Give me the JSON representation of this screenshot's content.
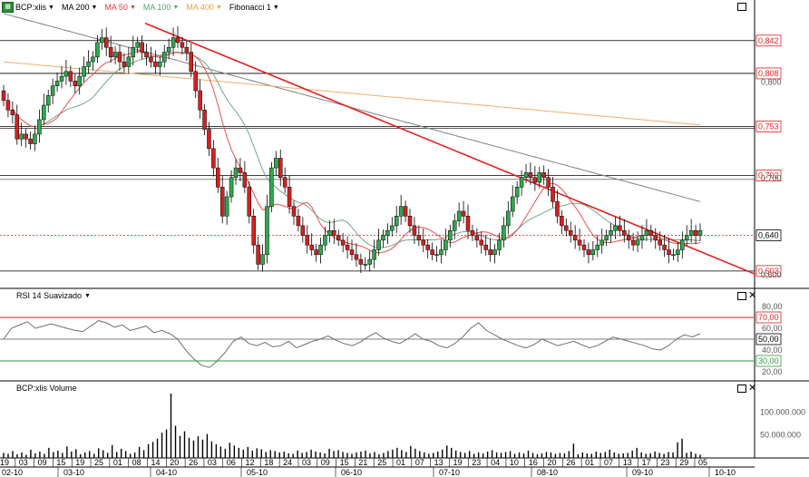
{
  "toolbar": {
    "ticker": "BCP:xlis",
    "ticker_icon": "ticker-badge",
    "indicators": [
      {
        "label": "MA 200",
        "color": "#000000"
      },
      {
        "label": "MA 50",
        "color": "#e83a3a"
      },
      {
        "label": "MA 100",
        "color": "#58a070"
      },
      {
        "label": "MA 400",
        "color": "#e8a040"
      },
      {
        "label": "Fibonacci 1",
        "color": "#000000"
      }
    ]
  },
  "rsi_panel": {
    "label": "RSI 14 Suavizado",
    "overbought": 70,
    "oversold": 30,
    "ticks": [
      "80,00",
      "70,00",
      "60,00",
      "50,00",
      "40,00",
      "30,00",
      "20,00"
    ]
  },
  "volume_panel": {
    "label": "BCP:xlis Volume",
    "ticks": [
      "100.000.000",
      "50.000.000"
    ]
  },
  "price_axis": {
    "fib_levels": [
      "0,842",
      "0,808",
      "0,753",
      "0,702",
      "0,603"
    ],
    "tick_labels": [
      "0,800",
      "0,700",
      "0,600"
    ],
    "current_price": "0,640"
  },
  "x_axis": {
    "days": [
      "19",
      "03",
      "09",
      "15",
      "19",
      "25",
      "01",
      "08",
      "14",
      "20",
      "26",
      "03",
      "06",
      "12",
      "18",
      "24",
      "03",
      "09",
      "15",
      "21",
      "25",
      "01",
      "07",
      "13",
      "19",
      "23",
      "04",
      "10",
      "16",
      "20",
      "26",
      "01",
      "07",
      "13",
      "17",
      "23",
      "29",
      "05"
    ],
    "months": [
      "02-10",
      "03-10",
      "04-10",
      "05-10",
      "06-10",
      "07-10",
      "08-10",
      "09-10",
      "10-10"
    ]
  },
  "colors": {
    "up": "#2fa84f",
    "down": "#d62020",
    "ma200": "#808080",
    "ma50": "#e85050",
    "ma100": "#70a888",
    "ma400": "#f0b070",
    "trendline": "#e02020",
    "fib_line": "#000000",
    "current_price_line": "#e02020",
    "rsi_line": "#707070",
    "rsi_overbought": "#e02020",
    "rsi_oversold": "#2e9a40",
    "volume_bar": "#000000"
  },
  "chart_data": [
    {
      "type": "candlestick",
      "title": "BCP:xlis",
      "ylabel": "",
      "ylim": [
        0.585,
        0.87
      ],
      "current_price": 0.64,
      "fibonacci_levels": [
        0.842,
        0.808,
        0.753,
        0.702,
        0.603
      ],
      "moving_averages": [
        "MA 200",
        "MA 50",
        "MA 100",
        "MA 400"
      ],
      "trendline": [
        {
          "x": "2010-03-18",
          "y": 0.86
        },
        {
          "x": "2010-10-06",
          "y": 0.6
        }
      ],
      "close": [
        0.78,
        0.77,
        0.765,
        0.74,
        0.745,
        0.74,
        0.735,
        0.745,
        0.76,
        0.775,
        0.785,
        0.795,
        0.8,
        0.805,
        0.81,
        0.8,
        0.795,
        0.805,
        0.815,
        0.82,
        0.825,
        0.84,
        0.845,
        0.835,
        0.825,
        0.83,
        0.82,
        0.815,
        0.825,
        0.835,
        0.84,
        0.83,
        0.825,
        0.82,
        0.815,
        0.82,
        0.83,
        0.835,
        0.845,
        0.84,
        0.835,
        0.83,
        0.81,
        0.79,
        0.77,
        0.75,
        0.73,
        0.71,
        0.69,
        0.66,
        0.68,
        0.7,
        0.71,
        0.705,
        0.69,
        0.66,
        0.63,
        0.61,
        0.62,
        0.67,
        0.71,
        0.72,
        0.7,
        0.69,
        0.67,
        0.66,
        0.65,
        0.64,
        0.63,
        0.625,
        0.62,
        0.63,
        0.64,
        0.645,
        0.64,
        0.635,
        0.63,
        0.625,
        0.62,
        0.615,
        0.61,
        0.61,
        0.615,
        0.625,
        0.635,
        0.64,
        0.645,
        0.65,
        0.66,
        0.67,
        0.66,
        0.65,
        0.64,
        0.635,
        0.63,
        0.625,
        0.62,
        0.62,
        0.625,
        0.635,
        0.645,
        0.655,
        0.665,
        0.66,
        0.645,
        0.64,
        0.635,
        0.63,
        0.625,
        0.62,
        0.625,
        0.635,
        0.65,
        0.665,
        0.68,
        0.69,
        0.7,
        0.705,
        0.7,
        0.695,
        0.705,
        0.7,
        0.69,
        0.675,
        0.66,
        0.65,
        0.645,
        0.64,
        0.635,
        0.63,
        0.625,
        0.62,
        0.625,
        0.63,
        0.635,
        0.64,
        0.645,
        0.65,
        0.645,
        0.64,
        0.635,
        0.63,
        0.635,
        0.64,
        0.645,
        0.64,
        0.635,
        0.63,
        0.625,
        0.62,
        0.62,
        0.625,
        0.635,
        0.64,
        0.645,
        0.64,
        0.645
      ]
    },
    {
      "type": "line",
      "title": "RSI 14 Suavizado",
      "ylim": [
        15,
        85
      ],
      "reference_lines": [
        70,
        30
      ],
      "values": [
        50,
        60,
        63,
        66,
        60,
        62,
        64,
        62,
        60,
        58,
        57,
        62,
        67,
        65,
        61,
        63,
        58,
        60,
        62,
        56,
        58,
        55,
        50,
        40,
        32,
        26,
        24,
        30,
        38,
        48,
        52,
        46,
        44,
        47,
        43,
        44,
        48,
        42,
        45,
        48,
        50,
        53,
        49,
        46,
        44,
        47,
        52,
        56,
        51,
        48,
        46,
        50,
        55,
        50,
        48,
        44,
        42,
        46,
        52,
        60,
        65,
        58,
        54,
        50,
        47,
        44,
        42,
        45,
        50,
        47,
        44,
        46,
        48,
        45,
        42,
        44,
        48,
        52,
        50,
        48,
        46,
        44,
        41,
        40,
        44,
        50,
        54,
        52,
        55
      ]
    },
    {
      "type": "bar",
      "title": "BCP:xlis Volume",
      "ylim": [
        0,
        140000000
      ],
      "values": [
        11000000,
        9000000,
        15000000,
        8000000,
        12000000,
        7000000,
        18000000,
        10000000,
        14000000,
        9000000,
        22000000,
        13000000,
        16000000,
        11000000,
        25000000,
        14000000,
        19000000,
        8000000,
        12000000,
        15000000,
        9000000,
        21000000,
        17000000,
        11000000,
        28000000,
        13000000,
        20000000,
        15000000,
        9000000,
        12000000,
        24000000,
        17000000,
        30000000,
        35000000,
        42000000,
        55000000,
        62000000,
        140000000,
        70000000,
        48000000,
        58000000,
        44000000,
        38000000,
        47000000,
        40000000,
        52000000,
        36000000,
        30000000,
        25000000,
        20000000,
        33000000,
        27000000,
        22000000,
        18000000,
        24000000,
        16000000,
        21000000,
        19000000,
        13000000,
        17000000,
        15000000,
        12000000,
        14000000,
        10000000,
        9000000,
        16000000,
        11000000,
        13000000,
        18000000,
        14000000,
        12000000,
        10000000,
        20000000,
        15000000,
        17000000,
        13000000,
        11000000,
        9000000,
        12000000,
        14000000,
        16000000,
        10000000,
        13000000,
        8000000,
        11000000,
        15000000,
        18000000,
        22000000,
        17000000,
        13000000,
        26000000,
        20000000,
        15000000,
        12000000,
        9000000,
        11000000,
        14000000,
        18000000,
        27000000,
        22000000,
        16000000,
        13000000,
        11000000,
        15000000,
        9000000,
        12000000,
        10000000,
        14000000,
        17000000,
        12000000,
        11000000,
        13000000,
        15000000,
        9000000,
        12000000,
        10000000,
        16000000,
        11000000,
        8000000,
        10000000,
        13000000,
        12000000,
        9000000,
        11000000,
        10000000,
        15000000,
        31000000,
        8000000,
        12000000,
        10000000,
        9000000,
        14000000,
        11000000,
        13000000,
        18000000,
        12000000,
        9000000,
        10000000,
        11000000,
        16000000,
        22000000,
        12000000,
        9000000,
        10000000,
        14000000,
        11000000,
        9000000,
        13000000,
        12000000,
        34000000,
        42000000,
        11000000,
        14000000,
        9000000,
        7000000
      ]
    }
  ]
}
